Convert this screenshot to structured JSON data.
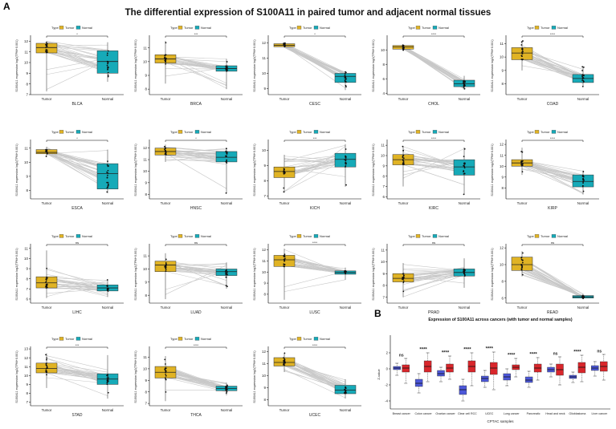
{
  "figure": {
    "panel_a_label": "A",
    "panel_b_label": "B",
    "main_title": "The differential expression of S100A11 in paired tumor and adjacent normal tissues",
    "legend_title": "Type",
    "legend_tumor": "Tumor",
    "legend_normal": "Normal",
    "ylabel": "S100A11 expression log2(TPM+0.001)",
    "tumor_label": "Tumor",
    "normal_label": "Normal"
  },
  "colors": {
    "tumor": "#e0b324",
    "normal": "#16aab8",
    "pair_line": "#c8c8c8",
    "cptac_tumor": "#d9262b",
    "cptac_normal": "#4c57d9"
  },
  "chart_data": [
    {
      "type": "box",
      "cancer": "BLCA",
      "significance": "*",
      "yticks": [
        7,
        8,
        9,
        10,
        11,
        12
      ],
      "ylim": [
        7,
        12.4
      ],
      "tumor": {
        "min": 7.3,
        "q1": 10.9,
        "median": 11.4,
        "q3": 11.8,
        "max": 12.0
      },
      "normal": {
        "min": 8.2,
        "q1": 9.0,
        "median": 10.1,
        "q3": 11.1,
        "max": 11.9
      }
    },
    {
      "type": "box",
      "cancer": "BRCA",
      "significance": "***",
      "yticks": [
        8,
        9,
        10,
        11
      ],
      "ylim": [
        7.6,
        11.8
      ],
      "tumor": {
        "min": 8.4,
        "q1": 9.9,
        "median": 10.2,
        "q3": 10.5,
        "max": 11.5
      },
      "normal": {
        "min": 8.0,
        "q1": 9.3,
        "median": 9.5,
        "q3": 9.7,
        "max": 10.2
      }
    },
    {
      "type": "box",
      "cancer": "CESC",
      "significance": "*",
      "yticks": [
        9,
        10,
        11,
        12
      ],
      "ylim": [
        8.6,
        12.4
      ],
      "tumor": {
        "min": 11.7,
        "q1": 11.75,
        "median": 11.85,
        "q3": 11.95,
        "max": 12.0
      },
      "normal": {
        "min": 8.9,
        "q1": 9.4,
        "median": 9.8,
        "q3": 10.0,
        "max": 10.1
      }
    },
    {
      "type": "box",
      "cancer": "CHOL",
      "significance": "****",
      "yticks": [
        4,
        6,
        8,
        10
      ],
      "ylim": [
        3.8,
        11.8
      ],
      "tumor": {
        "min": 9.9,
        "q1": 10.1,
        "median": 10.4,
        "q3": 10.6,
        "max": 10.8
      },
      "normal": {
        "min": 4.5,
        "q1": 4.9,
        "median": 5.3,
        "q3": 5.8,
        "max": 6.4
      }
    },
    {
      "type": "box",
      "cancer": "COAD",
      "significance": "****",
      "yticks": [
        8,
        9,
        10,
        11
      ],
      "ylim": [
        7.2,
        11.5
      ],
      "tumor": {
        "min": 9.0,
        "q1": 9.8,
        "median": 10.3,
        "q3": 10.7,
        "max": 11.2
      },
      "normal": {
        "min": 7.8,
        "q1": 8.1,
        "median": 8.4,
        "q3": 8.7,
        "max": 9.3
      }
    },
    {
      "type": "box",
      "cancer": "ESCA",
      "significance": "*",
      "yticks": [
        8,
        9,
        10,
        11
      ],
      "ylim": [
        7.4,
        11.5
      ],
      "tumor": {
        "min": 10.4,
        "q1": 10.6,
        "median": 10.7,
        "q3": 10.9,
        "max": 11.1
      },
      "normal": {
        "min": 7.8,
        "q1": 8.1,
        "median": 9.2,
        "q3": 9.9,
        "max": 10.9
      }
    },
    {
      "type": "box",
      "cancer": "HNSC",
      "significance": "*",
      "yticks": [
        8,
        9,
        10,
        11,
        12
      ],
      "ylim": [
        7.6,
        12.6
      ],
      "tumor": {
        "min": 10.8,
        "q1": 11.4,
        "median": 11.7,
        "q3": 12.0,
        "max": 12.3
      },
      "normal": {
        "min": 8.1,
        "q1": 10.8,
        "median": 11.2,
        "q3": 11.7,
        "max": 12.0
      }
    },
    {
      "type": "box",
      "cancer": "KICH",
      "significance": "***",
      "yticks": [
        7,
        8,
        9,
        10
      ],
      "ylim": [
        6.8,
        10.6
      ],
      "tumor": {
        "min": 7.2,
        "q1": 8.2,
        "median": 8.6,
        "q3": 8.9,
        "max": 9.7
      },
      "normal": {
        "min": 7.6,
        "q1": 8.9,
        "median": 9.4,
        "q3": 9.8,
        "max": 10.4
      }
    },
    {
      "type": "box",
      "cancer": "KIRC",
      "significance": "****",
      "yticks": [
        6,
        7,
        8,
        9,
        10,
        11
      ],
      "ylim": [
        5.8,
        11.4
      ],
      "tumor": {
        "min": 7.0,
        "q1": 9.1,
        "median": 9.6,
        "q3": 10.1,
        "max": 10.9
      },
      "normal": {
        "min": 6.2,
        "q1": 8.1,
        "median": 8.9,
        "q3": 9.6,
        "max": 10.8
      }
    },
    {
      "type": "box",
      "cancer": "KIRP",
      "significance": "****",
      "yticks": [
        8,
        9,
        10,
        11,
        12
      ],
      "ylim": [
        7.0,
        12.3
      ],
      "tumor": {
        "min": 9.2,
        "q1": 10.0,
        "median": 10.3,
        "q3": 10.6,
        "max": 11.7
      },
      "normal": {
        "min": 7.4,
        "q1": 8.1,
        "median": 8.6,
        "q3": 9.2,
        "max": 9.6
      }
    },
    {
      "type": "box",
      "cancer": "LIHC",
      "significance": "ns",
      "yticks": [
        6,
        7,
        8,
        9,
        10,
        11
      ],
      "ylim": [
        5.6,
        11.3
      ],
      "tumor": {
        "min": 6.1,
        "q1": 7.1,
        "median": 7.6,
        "q3": 8.2,
        "max": 10.8
      },
      "normal": {
        "min": 6.2,
        "q1": 6.8,
        "median": 7.1,
        "q3": 7.4,
        "max": 7.9
      }
    },
    {
      "type": "box",
      "cancer": "LUAD",
      "significance": "ns",
      "yticks": [
        8,
        9,
        10,
        11
      ],
      "ylim": [
        7.4,
        11.8
      ],
      "tumor": {
        "min": 7.7,
        "q1": 9.8,
        "median": 10.3,
        "q3": 10.6,
        "max": 11.2
      },
      "normal": {
        "min": 8.5,
        "q1": 9.5,
        "median": 9.8,
        "q3": 10.0,
        "max": 10.5
      }
    },
    {
      "type": "box",
      "cancer": "LUSC",
      "significance": "****",
      "yticks": [
        8,
        9,
        10,
        11,
        12
      ],
      "ylim": [
        7.2,
        12.4
      ],
      "tumor": {
        "min": 7.5,
        "q1": 10.5,
        "median": 11.1,
        "q3": 11.5,
        "max": 12.1
      },
      "normal": {
        "min": 9.3,
        "q1": 9.8,
        "median": 9.95,
        "q3": 10.1,
        "max": 10.4
      }
    },
    {
      "type": "box",
      "cancer": "PRAD",
      "significance": "ns",
      "yticks": [
        7,
        8,
        9,
        10,
        11
      ],
      "ylim": [
        6.5,
        11.4
      ],
      "tumor": {
        "min": 7.0,
        "q1": 8.3,
        "median": 8.6,
        "q3": 9.0,
        "max": 9.9
      },
      "normal": {
        "min": 7.8,
        "q1": 8.8,
        "median": 9.1,
        "q3": 9.4,
        "max": 10.3
      }
    },
    {
      "type": "box",
      "cancer": "READ",
      "significance": "ns",
      "yticks": [
        6,
        8,
        10,
        12
      ],
      "ylim": [
        5.4,
        12.3
      ],
      "tumor": {
        "min": 8.6,
        "q1": 9.3,
        "median": 10.0,
        "q3": 10.9,
        "max": 11.6
      },
      "normal": {
        "min": 5.9,
        "q1": 6.0,
        "median": 6.15,
        "q3": 6.3,
        "max": 6.5
      }
    },
    {
      "type": "box",
      "cancer": "STAD",
      "significance": "***",
      "yticks": [
        7,
        8,
        9,
        10,
        11,
        12,
        13
      ],
      "ylim": [
        6.6,
        13.1
      ],
      "tumor": {
        "min": 8.6,
        "q1": 10.3,
        "median": 10.8,
        "q3": 11.4,
        "max": 12.5
      },
      "normal": {
        "min": 7.4,
        "q1": 9.0,
        "median": 9.6,
        "q3": 10.2,
        "max": 12.3
      }
    },
    {
      "type": "box",
      "cancer": "THCA",
      "significance": "****",
      "yticks": [
        7,
        8,
        9,
        10,
        11
      ],
      "ylim": [
        6.8,
        11.8
      ],
      "tumor": {
        "min": 7.2,
        "q1": 9.2,
        "median": 9.7,
        "q3": 10.2,
        "max": 11.1
      },
      "normal": {
        "min": 7.7,
        "q1": 8.1,
        "median": 8.3,
        "q3": 8.5,
        "max": 8.8
      }
    },
    {
      "type": "box",
      "cancer": "UCEC",
      "significance": "****",
      "yticks": [
        8,
        9,
        10,
        11,
        12
      ],
      "ylim": [
        7.5,
        12.3
      ],
      "tumor": {
        "min": 10.3,
        "q1": 10.8,
        "median": 11.1,
        "q3": 11.5,
        "max": 11.9
      },
      "normal": {
        "min": 8.1,
        "q1": 8.5,
        "median": 8.8,
        "q3": 9.2,
        "max": 9.7
      }
    },
    {
      "type": "box",
      "panel": "B",
      "title": "Expression of S100A11 across cancers (with tumor and normal samples)",
      "xlabel": "CPTAC samples",
      "ylabel": "Z-value",
      "yticks": [
        -4,
        -2,
        0,
        2
      ],
      "ylim": [
        -5,
        3.6
      ],
      "categories": [
        "Breast cancer",
        "Colon cancer",
        "Ovarian cancer",
        "Clear cell RCC",
        "UCEC",
        "Lung cancer",
        "Pancreatic",
        "Head and neck",
        "Glioblastoma",
        "Liver cancer"
      ],
      "significance": [
        "ns",
        "****",
        "****",
        "****",
        "****",
        "****",
        "****",
        "ns",
        "****",
        "ns"
      ],
      "series": [
        {
          "name": "Normal",
          "boxes": [
            {
              "min": -0.8,
              "q1": -0.1,
              "median": 0.1,
              "q3": 0.3,
              "max": 0.7
            },
            {
              "min": -3.0,
              "q1": -2.2,
              "median": -1.8,
              "q3": -1.3,
              "max": -0.6
            },
            {
              "min": -1.6,
              "q1": -0.9,
              "median": -0.6,
              "q3": -0.2,
              "max": 0.2
            },
            {
              "min": -4.0,
              "q1": -3.2,
              "median": -2.6,
              "q3": -2.1,
              "max": -1.3
            },
            {
              "min": -2.3,
              "q1": -1.6,
              "median": -1.2,
              "q3": -0.9,
              "max": -0.2
            },
            {
              "min": -2.1,
              "q1": -1.4,
              "median": -1.0,
              "q3": -0.6,
              "max": 0.0
            },
            {
              "min": -2.3,
              "q1": -1.7,
              "median": -1.4,
              "q3": -1.0,
              "max": -0.3
            },
            {
              "min": -1.0,
              "q1": -0.4,
              "median": -0.1,
              "q3": 0.2,
              "max": 0.6
            },
            {
              "min": -1.7,
              "q1": -1.2,
              "median": -1.0,
              "q3": -0.8,
              "max": -0.4
            },
            {
              "min": -0.9,
              "q1": -0.2,
              "median": 0.1,
              "q3": 0.4,
              "max": 0.9
            }
          ]
        },
        {
          "name": "Tumor",
          "boxes": [
            {
              "min": -1.8,
              "q1": -0.4,
              "median": 0.1,
              "q3": 0.5,
              "max": 1.3
            },
            {
              "min": -1.6,
              "q1": -0.4,
              "median": 0.3,
              "q3": 1.0,
              "max": 2.0
            },
            {
              "min": -1.3,
              "q1": -0.4,
              "median": 0.1,
              "q3": 0.6,
              "max": 1.6
            },
            {
              "min": -2.1,
              "q1": -0.4,
              "median": 0.3,
              "q3": 1.0,
              "max": 2.0
            },
            {
              "min": -2.6,
              "q1": -0.7,
              "median": 0.1,
              "q3": 0.8,
              "max": 2.1
            },
            {
              "min": -1.0,
              "q1": -0.1,
              "median": 0.2,
              "q3": 0.5,
              "max": 1.3
            },
            {
              "min": -1.4,
              "q1": -0.4,
              "median": 0.1,
              "q3": 0.6,
              "max": 1.4
            },
            {
              "min": -2.0,
              "q1": -0.8,
              "median": -0.1,
              "q3": 0.6,
              "max": 1.5
            },
            {
              "min": -1.6,
              "q1": -0.5,
              "median": 0.2,
              "q3": 0.8,
              "max": 1.7
            },
            {
              "min": -1.4,
              "q1": -0.3,
              "median": 0.3,
              "q3": 0.9,
              "max": 1.8
            }
          ]
        }
      ]
    }
  ]
}
